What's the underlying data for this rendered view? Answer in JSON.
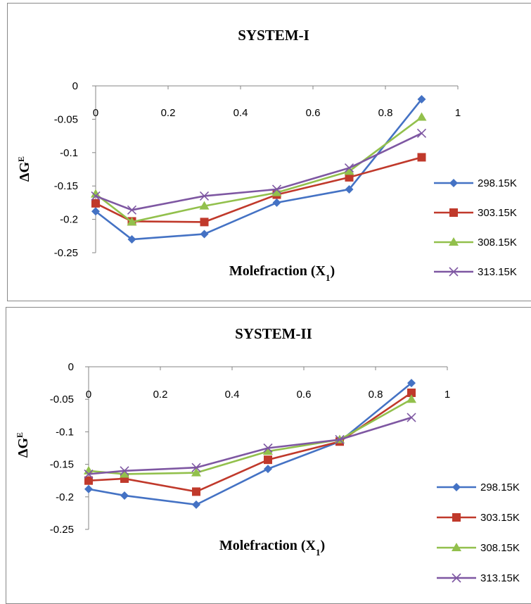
{
  "chart_data": [
    {
      "type": "line",
      "title": "SYSTEM-I",
      "xlabel": "Molefraction (X",
      "xlabel_sub": "1",
      "xlabel_close": ")",
      "ylabel": "ΔG",
      "ylabel_sup": "E",
      "xlim": [
        0,
        1
      ],
      "ylim": [
        -0.25,
        0
      ],
      "x_ticks": [
        "0",
        "0.2",
        "0.4",
        "0.6",
        "0.8",
        "1"
      ],
      "y_ticks": [
        "0",
        "-0.05",
        "-0.1",
        "-0.15",
        "-0.2",
        "-0.25"
      ],
      "grid": false,
      "legend_position": "right",
      "x": [
        0,
        0.1,
        0.3,
        0.5,
        0.7,
        0.9
      ],
      "series": [
        {
          "name": "298.15K",
          "color": "#4472C4",
          "marker": "diamond",
          "values": [
            -0.188,
            -0.23,
            -0.222,
            -0.175,
            -0.155,
            -0.02
          ]
        },
        {
          "name": "303.15K",
          "color": "#C0392B",
          "marker": "square",
          "values": [
            -0.176,
            -0.203,
            -0.204,
            -0.163,
            -0.137,
            -0.107
          ]
        },
        {
          "name": "308.15K",
          "color": "#92C04C",
          "marker": "triangle",
          "values": [
            -0.162,
            -0.204,
            -0.18,
            -0.16,
            -0.128,
            -0.047
          ]
        },
        {
          "name": "313.15K",
          "color": "#7E57A2",
          "marker": "cross",
          "values": [
            -0.165,
            -0.186,
            -0.165,
            -0.155,
            -0.123,
            -0.071
          ]
        }
      ]
    },
    {
      "type": "line",
      "title": "SYSTEM-II",
      "xlabel": "Molefraction (X",
      "xlabel_sub": "1",
      "xlabel_close": ")",
      "ylabel": "ΔG",
      "ylabel_sup": "E",
      "xlim": [
        0,
        1
      ],
      "ylim": [
        -0.25,
        0
      ],
      "x_ticks": [
        "0",
        "0.2",
        "0.4",
        "0.6",
        "0.8",
        "1"
      ],
      "y_ticks": [
        "0",
        "-0.05",
        "-0.1",
        "-0.15",
        "-0.2",
        "-0.25"
      ],
      "grid": false,
      "legend_position": "right",
      "x": [
        0,
        0.1,
        0.3,
        0.5,
        0.7,
        0.9
      ],
      "series": [
        {
          "name": "298.15K",
          "color": "#4472C4",
          "marker": "diamond",
          "values": [
            -0.188,
            -0.198,
            -0.212,
            -0.157,
            -0.115,
            -0.025
          ]
        },
        {
          "name": "303.15K",
          "color": "#C0392B",
          "marker": "square",
          "values": [
            -0.175,
            -0.172,
            -0.192,
            -0.143,
            -0.115,
            -0.04
          ]
        },
        {
          "name": "308.15K",
          "color": "#92C04C",
          "marker": "triangle",
          "values": [
            -0.16,
            -0.165,
            -0.163,
            -0.13,
            -0.112,
            -0.05
          ]
        },
        {
          "name": "313.15K",
          "color": "#7E57A2",
          "marker": "cross",
          "values": [
            -0.165,
            -0.16,
            -0.155,
            -0.125,
            -0.112,
            -0.078
          ]
        }
      ]
    }
  ]
}
